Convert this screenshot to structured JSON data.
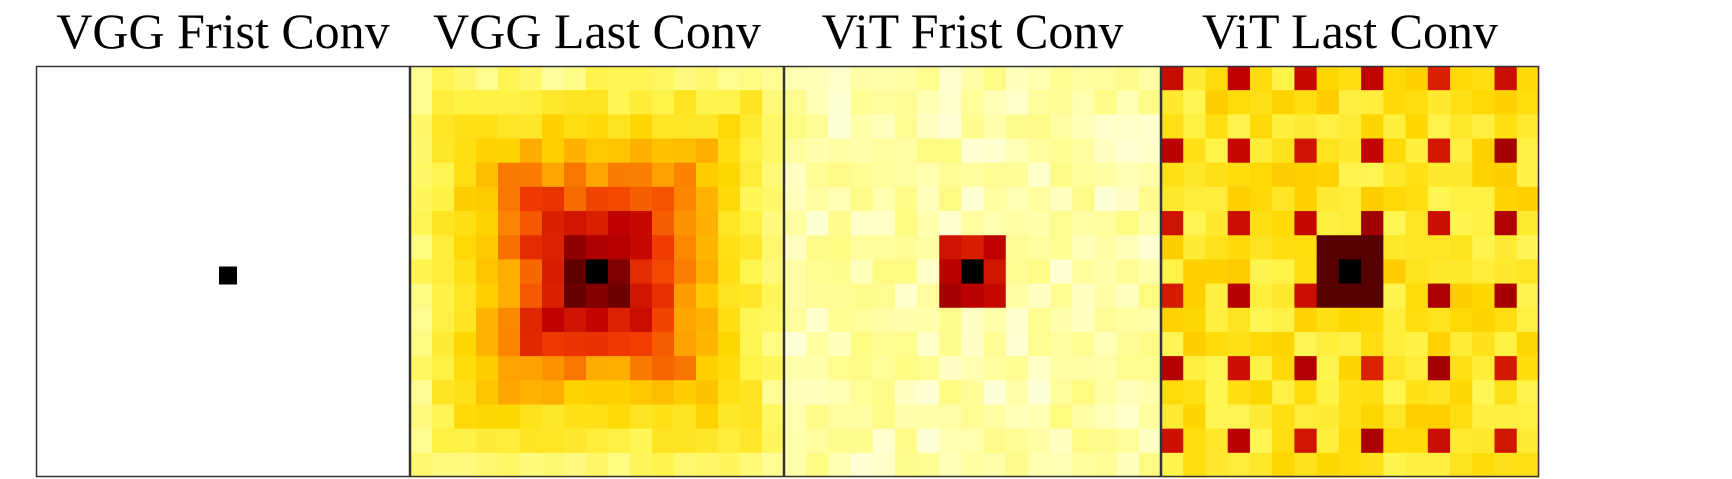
{
  "chart_data": [
    {
      "type": "heatmap",
      "title": "VGG Frist Conv",
      "grid": [
        17,
        17
      ],
      "colormap": "hot",
      "value_range": [
        0,
        1
      ],
      "pattern": "single-center",
      "center_value": 1.0,
      "background_value": 0.0
    },
    {
      "type": "heatmap",
      "title": "VGG Last Conv",
      "grid": [
        17,
        17
      ],
      "colormap": "hot",
      "value_range": [
        0,
        1
      ],
      "pattern": "radial",
      "center_value": 1.0,
      "edge_value": 0.15
    },
    {
      "type": "heatmap",
      "title": "ViT Frist Conv",
      "grid": [
        17,
        17
      ],
      "colormap": "hot",
      "value_range": [
        0,
        1
      ],
      "pattern": "center-block-3x3",
      "center_value": 1.0,
      "block_value": 0.85,
      "background_value": 0.08
    },
    {
      "type": "heatmap",
      "title": "ViT Last Conv",
      "grid": [
        17,
        17
      ],
      "colormap": "hot",
      "value_range": [
        0,
        1
      ],
      "pattern": "periodic-grid",
      "center_value": 1.0,
      "spot_value": 0.72,
      "background_value": 0.3
    }
  ]
}
